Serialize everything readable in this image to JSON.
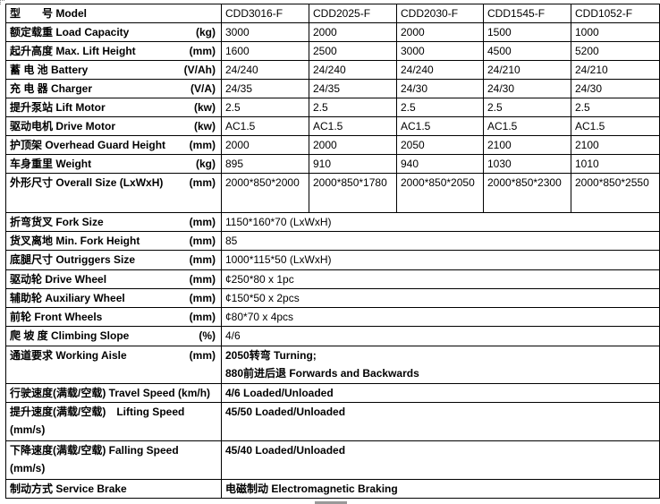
{
  "header": {
    "label": "型　　号 Model",
    "models": [
      "CDD3016-F",
      "CDD2025-F",
      "CDD2030-F",
      "CDD1545-F",
      "CDD1052-F"
    ]
  },
  "rows": [
    {
      "label": "额定载重 Load Capacity",
      "unit": "(kg)",
      "values": [
        "3000",
        "2000",
        "2000",
        "1500",
        "1000"
      ]
    },
    {
      "label": "起升高度 Max. Lift Height",
      "unit": "(mm)",
      "values": [
        "1600",
        "2500",
        "3000",
        "4500",
        "5200"
      ]
    },
    {
      "label": "蓄 电 池 Battery",
      "unit": "(V/Ah)",
      "values": [
        "24/240",
        "24/240",
        "24/240",
        "24/210",
        "24/210"
      ]
    },
    {
      "label": "充 电 器 Charger",
      "unit": "(V/A)",
      "values": [
        "24/35",
        "24/35",
        "24/30",
        "24/30",
        "24/30"
      ]
    },
    {
      "label": "提升泵站 Lift Motor",
      "unit": "(kw)",
      "values": [
        "2.5",
        "2.5",
        "2.5",
        "2.5",
        "2.5"
      ]
    },
    {
      "label": "驱动电机 Drive Motor",
      "unit": "(kw)",
      "values": [
        "AC1.5",
        "AC1.5",
        "AC1.5",
        "AC1.5",
        "AC1.5"
      ]
    },
    {
      "label": "护顶架 Overhead Guard Height",
      "unit": "(mm)",
      "values": [
        "2000",
        "2000",
        "2050",
        "2100",
        "2100"
      ]
    },
    {
      "label": "车身重里 Weight",
      "unit": "(kg)",
      "values": [
        "895",
        "910",
        "940",
        "1030",
        "1010"
      ]
    },
    {
      "label": "外形尺寸 Overall Size (LxWxH)",
      "unit": "(mm)",
      "values": [
        "2000*850*2000",
        "2000*850*1780",
        "2000*850*2050",
        "2000*850*2300",
        "2000*850*2550"
      ]
    }
  ],
  "shared_rows": [
    {
      "label": "折弯货叉 Fork Size",
      "unit": "(mm)",
      "value": "1150*160*70 (LxWxH)"
    },
    {
      "label": "货叉离地 Min. Fork Height",
      "unit": "(mm)",
      "value": "85"
    },
    {
      "label": "底腿尺寸  Outriggers Size",
      "unit": "(mm)",
      "value": "1000*115*50 (LxWxH)"
    },
    {
      "label": "驱动轮  Drive Wheel",
      "unit": "(mm)",
      "value": "¢250*80 x 1pc"
    },
    {
      "label": "辅助轮 Auxiliary Wheel",
      "unit": "(mm)",
      "value": "¢150*50 x 2pcs"
    },
    {
      "label": "前轮 Front Wheels",
      "unit": "(mm)",
      "value": "¢80*70 x 4pcs"
    },
    {
      "label": "爬 坡 度 Climbing Slope",
      "unit": "(%)",
      "value": "4/6"
    },
    {
      "label": "通道要求 Working Aisle",
      "unit": "(mm)",
      "value": "2050转弯 Turning;",
      "value2": "880前进后退 Forwards and Backwards"
    },
    {
      "label": "行驶速度(满载/空载) Travel Speed (km/h)",
      "unit": "",
      "value": "4/6 Loaded/Unloaded"
    },
    {
      "label": "提升速度(满载/空载)　Lifting Speed",
      "label2": "(mm/s)",
      "unit": "",
      "value": "45/50 Loaded/Unloaded"
    },
    {
      "label": "下降速度(满载/空载) Falling Speed",
      "label2": "(mm/s)",
      "unit": "",
      "value": "45/40 Loaded/Unloaded"
    },
    {
      "label": "制动方式 Service Brake",
      "unit": "",
      "value": "电磁制动 Electromagnetic Braking"
    }
  ]
}
